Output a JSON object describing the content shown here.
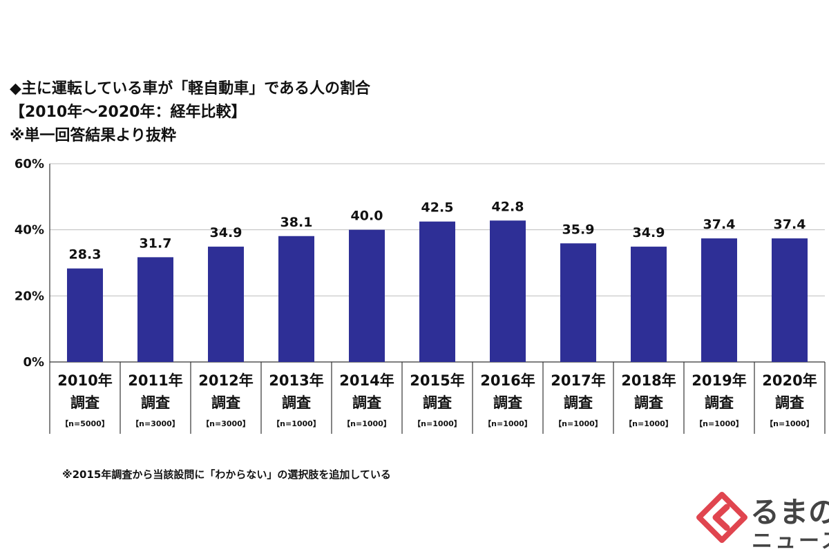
{
  "title": {
    "line1": "◆主に運転している車が「軽自動車」である人の割合",
    "line2": "【2010年～2020年：経年比較】",
    "line3": "※単一回答結果より抜粋"
  },
  "chart_data": {
    "type": "bar",
    "categories": [
      {
        "year": "2010年",
        "sub": "調査",
        "n": "【n=5000】"
      },
      {
        "year": "2011年",
        "sub": "調査",
        "n": "【n=3000】"
      },
      {
        "year": "2012年",
        "sub": "調査",
        "n": "【n=3000】"
      },
      {
        "year": "2013年",
        "sub": "調査",
        "n": "【n=1000】"
      },
      {
        "year": "2014年",
        "sub": "調査",
        "n": "【n=1000】"
      },
      {
        "year": "2015年",
        "sub": "調査",
        "n": "【n=1000】"
      },
      {
        "year": "2016年",
        "sub": "調査",
        "n": "【n=1000】"
      },
      {
        "year": "2017年",
        "sub": "調査",
        "n": "【n=1000】"
      },
      {
        "year": "2018年",
        "sub": "調査",
        "n": "【n=1000】"
      },
      {
        "year": "2019年",
        "sub": "調査",
        "n": "【n=1000】"
      },
      {
        "year": "2020年",
        "sub": "調査",
        "n": "【n=1000】"
      }
    ],
    "values": [
      28.3,
      31.7,
      34.9,
      38.1,
      40.0,
      42.5,
      42.8,
      35.9,
      34.9,
      37.4,
      37.4
    ],
    "data_labels": [
      "28.3",
      "31.7",
      "34.9",
      "38.1",
      "40.0",
      "42.5",
      "42.8",
      "35.9",
      "34.9",
      "37.4",
      "37.4"
    ],
    "ylim": [
      0,
      60
    ],
    "yticks": [
      {
        "value": 0,
        "label": "0%"
      },
      {
        "value": 20,
        "label": "20%"
      },
      {
        "value": 40,
        "label": "40%"
      },
      {
        "value": 60,
        "label": "60%"
      }
    ],
    "grid": true,
    "bar_color": "#2e2f96"
  },
  "footnote": "※2015年調査から当該設問に「わからない」の選択肢を追加している",
  "logo": {
    "main": "るまの",
    "sub": "ニュース",
    "color": "#e0454f"
  }
}
